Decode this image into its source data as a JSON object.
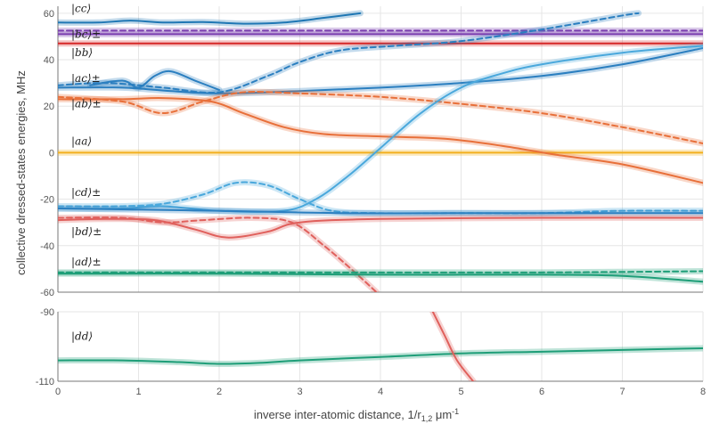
{
  "chart_data": [
    {
      "type": "line",
      "title": "",
      "xlabel": "",
      "ylabel": "collective dressed-states energies, MHz",
      "xlim": [
        0,
        8
      ],
      "ylim": [
        -60,
        63
      ],
      "x_ticks": [
        "0",
        "1",
        "2",
        "3",
        "4",
        "5",
        "6",
        "7",
        "8"
      ],
      "y_ticks": [
        "-60",
        "-40",
        "-20",
        "0",
        "20",
        "40",
        "60"
      ],
      "grid": true,
      "state_labels": [
        "|cc⟩",
        "|bc⟩±",
        "|bb⟩",
        "|ac⟩±",
        "|ab⟩±",
        "|aa⟩",
        "|cd⟩±",
        "|bd⟩±",
        "|ad⟩±"
      ],
      "colors": {
        "cc": "#1f77b4",
        "bc": "#7b3fb0",
        "bb": "#d62728",
        "ac": "#2b7fc0",
        "ab": "#e8703a",
        "aa": "#f2b01e",
        "cd": "#4aa8dc",
        "bd": "#e0605c",
        "ad": "#1e9e78"
      },
      "series": [
        {
          "key": "cc",
          "color": "#1f77b4",
          "style": "solid",
          "points": [
            [
              0,
              56
            ],
            [
              0.5,
              56
            ],
            [
              0.9,
              56.8
            ],
            [
              1.3,
              56
            ],
            [
              1.8,
              56.2
            ],
            [
              2.3,
              55.5
            ],
            [
              2.8,
              56
            ],
            [
              3.3,
              58
            ],
            [
              3.75,
              60
            ]
          ]
        },
        {
          "key": "bc",
          "color": "#7b3fb0",
          "style": "solid",
          "points": [
            [
              0,
              51
            ],
            [
              8,
              51
            ]
          ]
        },
        {
          "key": "bc",
          "color": "#7b3fb0",
          "style": "dashed",
          "points": [
            [
              0,
              52.5
            ],
            [
              8,
              52.5
            ]
          ]
        },
        {
          "key": "bb",
          "color": "#d62728",
          "style": "solid",
          "points": [
            [
              0,
              47
            ],
            [
              8,
              47
            ]
          ]
        },
        {
          "key": "aa",
          "color": "#f2b01e",
          "style": "solid",
          "points": [
            [
              0,
              0
            ],
            [
              8,
              0
            ]
          ]
        },
        {
          "key": "ac",
          "color": "#2b7fc0",
          "style": "solid",
          "points": [
            [
              0,
              28
            ],
            [
              0.8,
              28
            ],
            [
              1.4,
              26.5
            ],
            [
              2,
              25.5
            ],
            [
              3,
              26.5
            ],
            [
              4,
              28
            ],
            [
              5,
              30
            ],
            [
              6,
              33
            ],
            [
              7,
              38
            ],
            [
              8,
              45
            ]
          ]
        },
        {
          "key": "ac",
          "color": "#2b7fc0",
          "style": "dashed",
          "points": [
            [
              0,
              29
            ],
            [
              0.6,
              30
            ],
            [
              1.3,
              28
            ],
            [
              2,
              26
            ],
            [
              2.6,
              33
            ],
            [
              3,
              39
            ],
            [
              3.5,
              44
            ],
            [
              4.2,
              46
            ],
            [
              5,
              48
            ],
            [
              6,
              53
            ],
            [
              7,
              59
            ],
            [
              7.2,
              60
            ]
          ]
        },
        {
          "key": "ac",
          "color": "#2b7fc0",
          "style": "solid",
          "points": [
            [
              0.4,
              29
            ],
            [
              0.8,
              31
            ],
            [
              1.0,
              28
            ],
            [
              1.2,
              33
            ],
            [
              1.4,
              35
            ],
            [
              1.7,
              31
            ],
            [
              2,
              27
            ]
          ]
        },
        {
          "key": "ab",
          "color": "#e8703a",
          "style": "solid",
          "points": [
            [
              0,
              23
            ],
            [
              0.8,
              23
            ],
            [
              1.3,
              23.5
            ],
            [
              1.9,
              22
            ],
            [
              2.3,
              17
            ],
            [
              2.8,
              11
            ],
            [
              3.3,
              8
            ],
            [
              4,
              7
            ],
            [
              4.8,
              6
            ],
            [
              5.5,
              3
            ],
            [
              6.2,
              -1
            ],
            [
              7,
              -5
            ],
            [
              8,
              -13
            ]
          ]
        },
        {
          "key": "ab",
          "color": "#e8703a",
          "style": "dashed",
          "points": [
            [
              0,
              24
            ],
            [
              0.8,
              22
            ],
            [
              1.3,
              17
            ],
            [
              1.8,
              22
            ],
            [
              2.3,
              26
            ],
            [
              3,
              25.5
            ],
            [
              4,
              24
            ],
            [
              5,
              21
            ],
            [
              6,
              17
            ],
            [
              7,
              11
            ],
            [
              8,
              4
            ]
          ]
        },
        {
          "key": "cd",
          "color": "#4aa8dc",
          "style": "solid",
          "points": [
            [
              0,
              -24
            ],
            [
              0.8,
              -24
            ],
            [
              1.3,
              -23
            ],
            [
              2,
              -25
            ],
            [
              2.8,
              -25
            ],
            [
              3.2,
              -20
            ],
            [
              3.6,
              -10
            ],
            [
              4,
              2
            ],
            [
              4.5,
              17
            ],
            [
              5,
              28
            ],
            [
              5.5,
              34
            ],
            [
              6,
              38
            ],
            [
              7,
              43
            ],
            [
              8,
              46
            ]
          ]
        },
        {
          "key": "cd",
          "color": "#4aa8dc",
          "style": "dashed",
          "points": [
            [
              0,
              -23
            ],
            [
              0.8,
              -23
            ],
            [
              1.3,
              -22
            ],
            [
              1.8,
              -18
            ],
            [
              2.2,
              -13
            ],
            [
              2.6,
              -14
            ],
            [
              3,
              -20
            ],
            [
              3.4,
              -25
            ],
            [
              4,
              -26
            ],
            [
              5,
              -26
            ],
            [
              6,
              -26
            ],
            [
              7,
              -25
            ],
            [
              8,
              -25
            ]
          ]
        },
        {
          "key": "cd",
          "color": "#2b7fc0",
          "style": "solid",
          "points": [
            [
              0,
              -24
            ],
            [
              2,
              -25
            ],
            [
              3.5,
              -26
            ],
            [
              5,
              -26
            ],
            [
              6.5,
              -26
            ],
            [
              8,
              -26
            ]
          ]
        },
        {
          "key": "bd",
          "color": "#e0605c",
          "style": "solid",
          "points": [
            [
              0,
              -29
            ],
            [
              0.6,
              -28.5
            ],
            [
              1.2,
              -29
            ],
            [
              1.7,
              -33
            ],
            [
              2.1,
              -36.5
            ],
            [
              2.6,
              -34
            ],
            [
              3,
              -30
            ],
            [
              4,
              -28.5
            ],
            [
              6,
              -28
            ],
            [
              8,
              -28
            ]
          ]
        },
        {
          "key": "bd",
          "color": "#e0605c",
          "style": "dashed",
          "points": [
            [
              0,
              -28
            ],
            [
              0.8,
              -28
            ],
            [
              1.3,
              -30
            ],
            [
              1.8,
              -29
            ],
            [
              2.4,
              -28
            ],
            [
              2.9,
              -30
            ],
            [
              3.3,
              -40
            ],
            [
              3.7,
              -52
            ],
            [
              3.95,
              -60
            ]
          ]
        },
        {
          "key": "ad",
          "color": "#1e9e78",
          "style": "solid",
          "points": [
            [
              0,
              -52
            ],
            [
              2,
              -52
            ],
            [
              4,
              -52.5
            ],
            [
              5,
              -52.5
            ],
            [
              6,
              -52.5
            ],
            [
              7,
              -53
            ],
            [
              8,
              -55.5
            ]
          ]
        },
        {
          "key": "ad",
          "color": "#1e9e78",
          "style": "dashed",
          "points": [
            [
              0,
              -51.5
            ],
            [
              2,
              -51.5
            ],
            [
              4,
              -51.5
            ],
            [
              6,
              -51.5
            ],
            [
              8,
              -51
            ]
          ]
        }
      ]
    },
    {
      "type": "line",
      "title": "",
      "xlabel": "inverse inter-atomic distance, 1/r",
      "xlabel_sub": "1,2",
      "xlabel_unit": "μm",
      "xlabel_sup": "-1",
      "ylabel": "",
      "xlim": [
        0,
        8
      ],
      "ylim": [
        -110,
        -90
      ],
      "x_ticks": [
        "0",
        "1",
        "2",
        "3",
        "4",
        "5",
        "6",
        "7",
        "8"
      ],
      "y_ticks": [
        "-110",
        "-90"
      ],
      "grid": true,
      "state_labels": [
        "|dd⟩"
      ],
      "series": [
        {
          "key": "dd",
          "color": "#1e9e78",
          "style": "solid",
          "points": [
            [
              0,
              -104
            ],
            [
              0.8,
              -104
            ],
            [
              1.5,
              -104.5
            ],
            [
              2,
              -105
            ],
            [
              2.5,
              -104.7
            ],
            [
              3,
              -104
            ],
            [
              4,
              -103
            ],
            [
              5,
              -102
            ],
            [
              6,
              -101.5
            ],
            [
              7,
              -101
            ],
            [
              8,
              -100.5
            ]
          ]
        },
        {
          "key": "bd",
          "color": "#e0605c",
          "style": "solid",
          "points": [
            [
              4.65,
              -90
            ],
            [
              4.8,
              -97
            ],
            [
              4.95,
              -104
            ],
            [
              5.15,
              -110
            ]
          ]
        }
      ]
    }
  ]
}
